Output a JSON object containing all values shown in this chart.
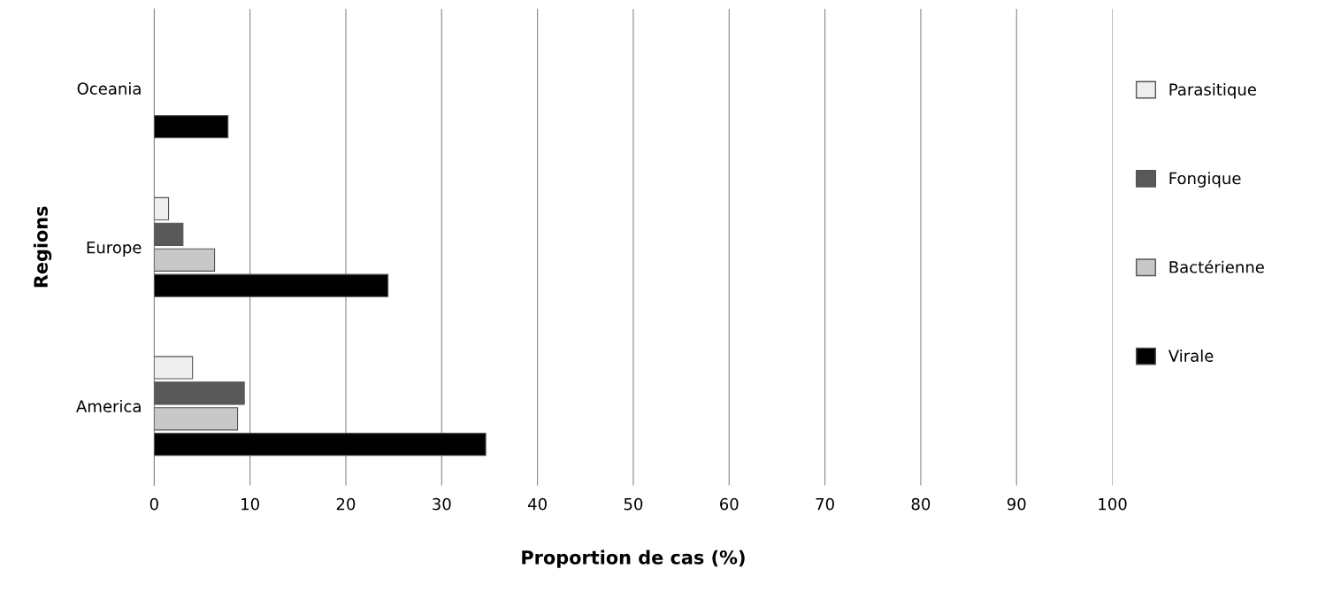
{
  "chart_data": {
    "type": "bar",
    "orientation": "horizontal",
    "xlabel": "Proportion de cas (%)",
    "ylabel": "Regions",
    "categories": [
      "Oceania",
      "Europe",
      "America"
    ],
    "series": [
      {
        "name": "Parasitique",
        "color": "#eeeeee",
        "values": [
          null,
          1.5,
          4.0
        ]
      },
      {
        "name": "Fongique",
        "color": "#595959",
        "values": [
          null,
          3.0,
          9.4
        ]
      },
      {
        "name": "Bactérienne",
        "color": "#c8c8c8",
        "values": [
          null,
          6.3,
          8.7
        ]
      },
      {
        "name": "Virale",
        "color": "#000000",
        "values": [
          7.7,
          24.4,
          34.6
        ]
      }
    ],
    "xlim": [
      0,
      100
    ],
    "xticks": [
      0,
      10,
      20,
      30,
      40,
      50,
      60,
      70,
      80,
      90,
      100
    ],
    "grid": "x",
    "legend": "right"
  }
}
